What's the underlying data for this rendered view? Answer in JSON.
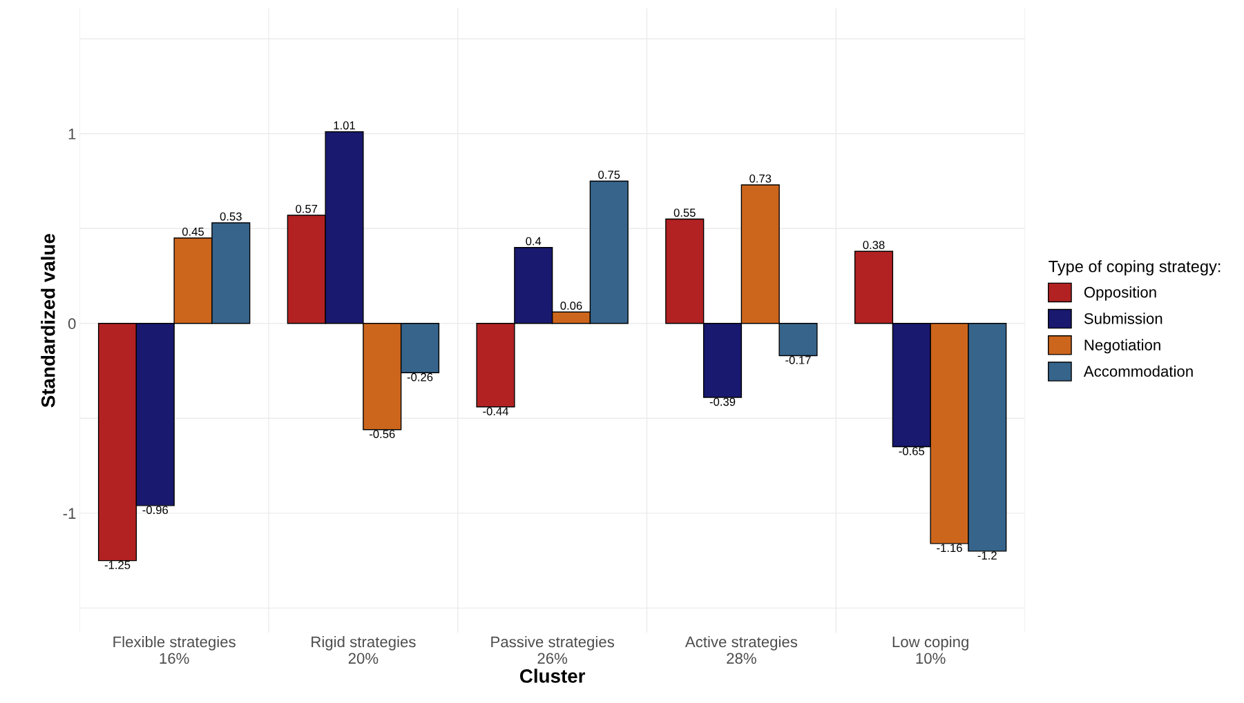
{
  "chart_data": {
    "type": "bar",
    "xlabel": "Cluster",
    "ylabel": "Standardized value",
    "legend_title": "Type of coping strategy:",
    "categories": [
      "Flexible strategies\n16%",
      "Rigid strategies\n20%",
      "Passive strategies\n26%",
      "Active strategies\n28%",
      "Low coping\n10%"
    ],
    "series": [
      {
        "name": "Opposition",
        "color": "#b22222",
        "values": [
          -1.25,
          0.57,
          -0.44,
          0.55,
          0.38
        ]
      },
      {
        "name": "Submission",
        "color": "#191970",
        "values": [
          -0.96,
          1.01,
          0.4,
          -0.39,
          -0.65
        ]
      },
      {
        "name": "Negotiation",
        "color": "#cd661d",
        "values": [
          0.45,
          -0.56,
          0.06,
          0.73,
          -1.16
        ]
      },
      {
        "name": "Accommodation",
        "color": "#36648b",
        "values": [
          0.53,
          -0.26,
          0.75,
          -0.17,
          -1.2
        ]
      }
    ],
    "ylim": [
      -1.63,
      1.66
    ],
    "yticks": [
      {
        "value": -1.5,
        "label": null
      },
      -1,
      {
        "value": -0.5,
        "label": null
      },
      0,
      {
        "value": 0.5,
        "label": null
      },
      1,
      {
        "value": 1.5,
        "label": null
      }
    ],
    "grid": true,
    "legend": "right",
    "data_labels": true
  }
}
